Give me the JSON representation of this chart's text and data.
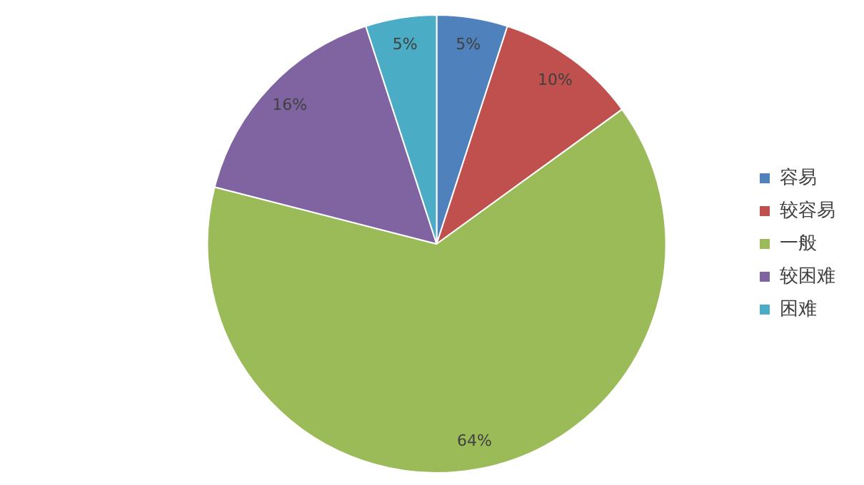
{
  "chart_data": {
    "type": "pie",
    "categories": [
      "容易",
      "较容易",
      "一般",
      "较困难",
      "困难"
    ],
    "values": [
      5,
      10,
      64,
      16,
      5
    ],
    "colors": [
      "#4f81bd",
      "#c0504d",
      "#9bbb59",
      "#8064a2",
      "#4bacc6"
    ],
    "value_labels": [
      "5%",
      "10%",
      "64%",
      "16%",
      "5%"
    ],
    "legend": "right"
  }
}
